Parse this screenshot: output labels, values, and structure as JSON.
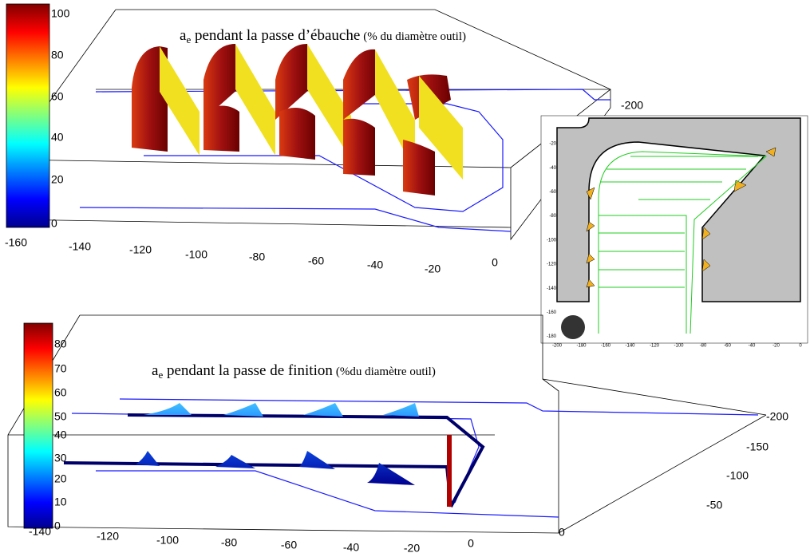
{
  "top_plot": {
    "title": {
      "symbol": "a",
      "subscript": "e",
      "text": " pendant la passe d’ébauche",
      "note": "(% du diamètre outil)"
    },
    "colorbar_ticks": [
      "100",
      "80",
      "60",
      "40",
      "20",
      "0"
    ],
    "x_ticks": [
      "-160",
      "-140",
      "-120",
      "-100",
      "-80",
      "-60",
      "-40",
      "-20",
      "0"
    ],
    "y_ticks": [
      "-200"
    ]
  },
  "inset": {
    "y_ticks": [
      "-20",
      "-40",
      "-60",
      "-80",
      "-100",
      "-120",
      "-140",
      "-160",
      "-180"
    ],
    "x_ticks": [
      "-200",
      "-180",
      "-160",
      "-140",
      "-120",
      "-100",
      "-80",
      "-60",
      "-40",
      "-20",
      "0"
    ]
  },
  "bottom_plot": {
    "title": {
      "symbol": "a",
      "subscript": "e",
      "text": " pendant la passe de finition",
      "note": "(%du diamètre outil)"
    },
    "colorbar_ticks": [
      "80",
      "70",
      "60",
      "50",
      "40",
      "30",
      "20",
      "10",
      "0"
    ],
    "x_ticks": [
      "-140",
      "-120",
      "-100",
      "-80",
      "-60",
      "-40",
      "-20",
      "0"
    ],
    "y_ticks": [
      "-200",
      "-150",
      "-100",
      "-50",
      "0"
    ]
  }
}
